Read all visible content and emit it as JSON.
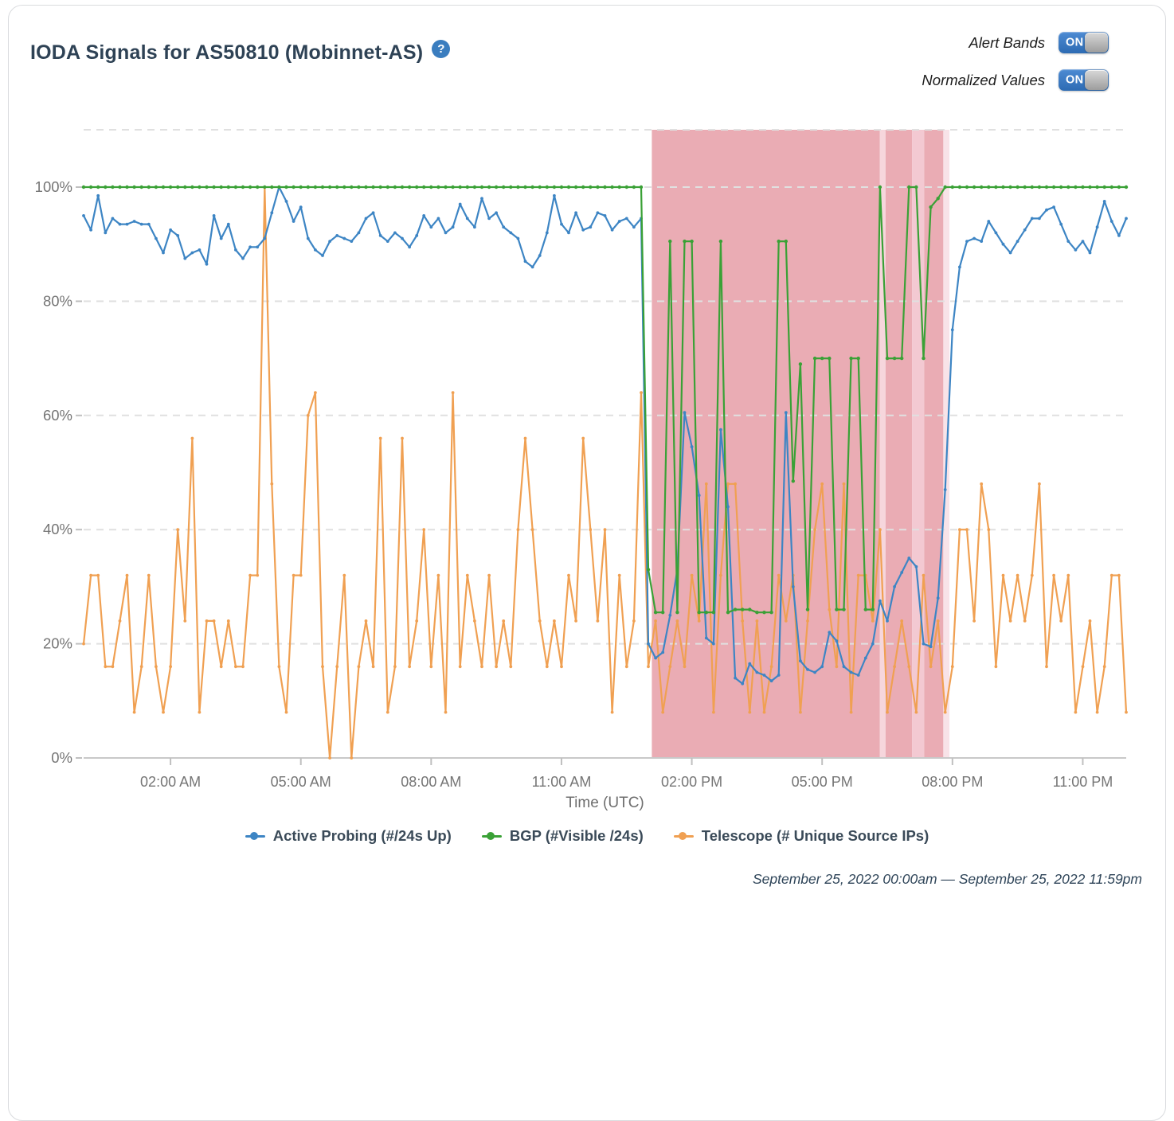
{
  "header": {
    "title": "IODA Signals for AS50810 (Mobinnet-AS)",
    "help_icon": "?",
    "toggles": [
      {
        "label": "Alert Bands",
        "state": "ON"
      },
      {
        "label": "Normalized Values",
        "state": "ON"
      }
    ]
  },
  "chart_data": {
    "type": "line",
    "xlabel": "Time (UTC)",
    "x_range_hours": [
      0,
      24
    ],
    "y_range_pct": [
      0,
      110
    ],
    "grid": "dashed-horizontal",
    "legend_position": "bottom",
    "sample_interval_minutes": 10,
    "x_ticks": [
      {
        "hour": 2,
        "label": "02:00 AM"
      },
      {
        "hour": 5,
        "label": "05:00 AM"
      },
      {
        "hour": 8,
        "label": "08:00 AM"
      },
      {
        "hour": 11,
        "label": "11:00 AM"
      },
      {
        "hour": 14,
        "label": "02:00 PM"
      },
      {
        "hour": 17,
        "label": "05:00 PM"
      },
      {
        "hour": 20,
        "label": "08:00 PM"
      },
      {
        "hour": 23,
        "label": "11:00 PM"
      }
    ],
    "y_ticks": [
      {
        "value": 0,
        "label": "0%"
      },
      {
        "value": 20,
        "label": "20%"
      },
      {
        "value": 40,
        "label": "40%"
      },
      {
        "value": 60,
        "label": "60%"
      },
      {
        "value": 80,
        "label": "80%"
      },
      {
        "value": 100,
        "label": "100%"
      },
      {
        "value": 110,
        "label": ""
      }
    ],
    "alert_bands": [
      {
        "start_hour": 13.08,
        "end_hour": 18.33,
        "color": "#eaacb4"
      },
      {
        "start_hour": 18.33,
        "end_hour": 18.46,
        "color": "#f6d6dc"
      },
      {
        "start_hour": 18.46,
        "end_hour": 19.07,
        "color": "#eaacb4"
      },
      {
        "start_hour": 19.07,
        "end_hour": 19.35,
        "color": "#f3c9d2"
      },
      {
        "start_hour": 19.35,
        "end_hour": 19.79,
        "color": "#eaacb4"
      },
      {
        "start_hour": 19.79,
        "end_hour": 19.93,
        "color": "#f8e3e8"
      }
    ],
    "series": [
      {
        "name": "Active Probing (#/24s Up)",
        "color": "#3d85c4",
        "values": [
          95,
          92.5,
          98.5,
          92,
          94.5,
          93.5,
          93.5,
          94,
          93.5,
          93.5,
          91,
          88.5,
          92.5,
          91.5,
          87.5,
          88.5,
          89,
          86.5,
          95,
          91,
          93.5,
          89,
          87.5,
          89.5,
          89.5,
          91,
          95.5,
          100,
          97.5,
          94,
          96.5,
          91,
          89,
          88,
          90.5,
          91.5,
          91,
          90.5,
          92,
          94.5,
          95.5,
          91.5,
          90.5,
          92,
          91,
          89.5,
          91.5,
          95,
          93,
          94.5,
          92,
          93,
          97,
          94.5,
          93,
          98,
          94.5,
          95.5,
          93,
          92,
          91,
          87,
          86,
          88,
          92,
          98.5,
          93.5,
          92,
          95.5,
          92.5,
          93,
          95.5,
          95,
          92.5,
          94,
          94.5,
          93,
          94.5,
          20,
          17.5,
          18.5,
          25,
          33,
          60.5,
          54.5,
          46,
          21,
          20,
          57.5,
          44,
          14,
          13,
          16.5,
          15,
          14.5,
          13.5,
          14.5,
          60.5,
          30,
          17,
          15.5,
          15,
          16,
          22,
          20.5,
          16,
          15,
          14.5,
          17.5,
          20,
          27.5,
          24,
          30,
          32.5,
          35,
          33.5,
          20,
          19.5,
          28,
          47,
          75,
          86,
          90.5,
          91,
          90.5,
          94,
          92,
          90,
          88.5,
          90.5,
          92.5,
          94.5,
          94.5,
          96,
          96.5,
          93.5,
          90.5,
          89,
          90.5,
          88.5,
          93,
          97.5,
          94,
          91.5,
          94.5
        ]
      },
      {
        "name": "BGP (#Visible /24s)",
        "color": "#3aa136",
        "values": [
          100,
          100,
          100,
          100,
          100,
          100,
          100,
          100,
          100,
          100,
          100,
          100,
          100,
          100,
          100,
          100,
          100,
          100,
          100,
          100,
          100,
          100,
          100,
          100,
          100,
          100,
          100,
          100,
          100,
          100,
          100,
          100,
          100,
          100,
          100,
          100,
          100,
          100,
          100,
          100,
          100,
          100,
          100,
          100,
          100,
          100,
          100,
          100,
          100,
          100,
          100,
          100,
          100,
          100,
          100,
          100,
          100,
          100,
          100,
          100,
          100,
          100,
          100,
          100,
          100,
          100,
          100,
          100,
          100,
          100,
          100,
          100,
          100,
          100,
          100,
          100,
          100,
          100,
          33,
          25.5,
          25.5,
          90.5,
          25.5,
          90.5,
          90.5,
          25.5,
          25.5,
          25.5,
          90.5,
          25.5,
          26,
          26,
          26,
          25.5,
          25.5,
          25.5,
          90.5,
          90.5,
          48.5,
          69,
          26,
          70,
          70,
          70,
          26,
          26,
          70,
          70,
          26,
          26,
          100,
          70,
          70,
          70,
          100,
          100,
          70,
          96.5,
          98,
          100,
          100,
          100,
          100,
          100,
          100,
          100,
          100,
          100,
          100,
          100,
          100,
          100,
          100,
          100,
          100,
          100,
          100,
          100,
          100,
          100,
          100,
          100,
          100,
          100,
          100
        ]
      },
      {
        "name": "Telescope (# Unique Source IPs)",
        "color": "#f0a052",
        "values": [
          20,
          32,
          32,
          16,
          16,
          24,
          32,
          8,
          16,
          32,
          16,
          8,
          16,
          40,
          24,
          56,
          8,
          24,
          24,
          16,
          24,
          16,
          16,
          32,
          32,
          100,
          48,
          16,
          8,
          32,
          32,
          60,
          64,
          16,
          0,
          16,
          32,
          0,
          16,
          24,
          16,
          56,
          8,
          16,
          56,
          16,
          24,
          40,
          16,
          32,
          8,
          64,
          16,
          32,
          24,
          16,
          32,
          16,
          24,
          16,
          40,
          56,
          40,
          24,
          16,
          24,
          16,
          32,
          24,
          56,
          40,
          24,
          40,
          8,
          32,
          16,
          24,
          64,
          16,
          24,
          8,
          16,
          24,
          16,
          32,
          24,
          48,
          8,
          32,
          48,
          48,
          24,
          8,
          24,
          8,
          16,
          32,
          24,
          32,
          8,
          24,
          40,
          48,
          26,
          16,
          48,
          8,
          32,
          32,
          24,
          40,
          8,
          16,
          24,
          16,
          8,
          32,
          16,
          24,
          8,
          16,
          40,
          40,
          24,
          48,
          40,
          16,
          32,
          24,
          32,
          24,
          32,
          48,
          16,
          32,
          24,
          32,
          8,
          16,
          24,
          8,
          16,
          32,
          32,
          8
        ]
      }
    ]
  },
  "footer": {
    "date_range": "September 25, 2022 00:00am — September 25, 2022 11:59pm"
  }
}
